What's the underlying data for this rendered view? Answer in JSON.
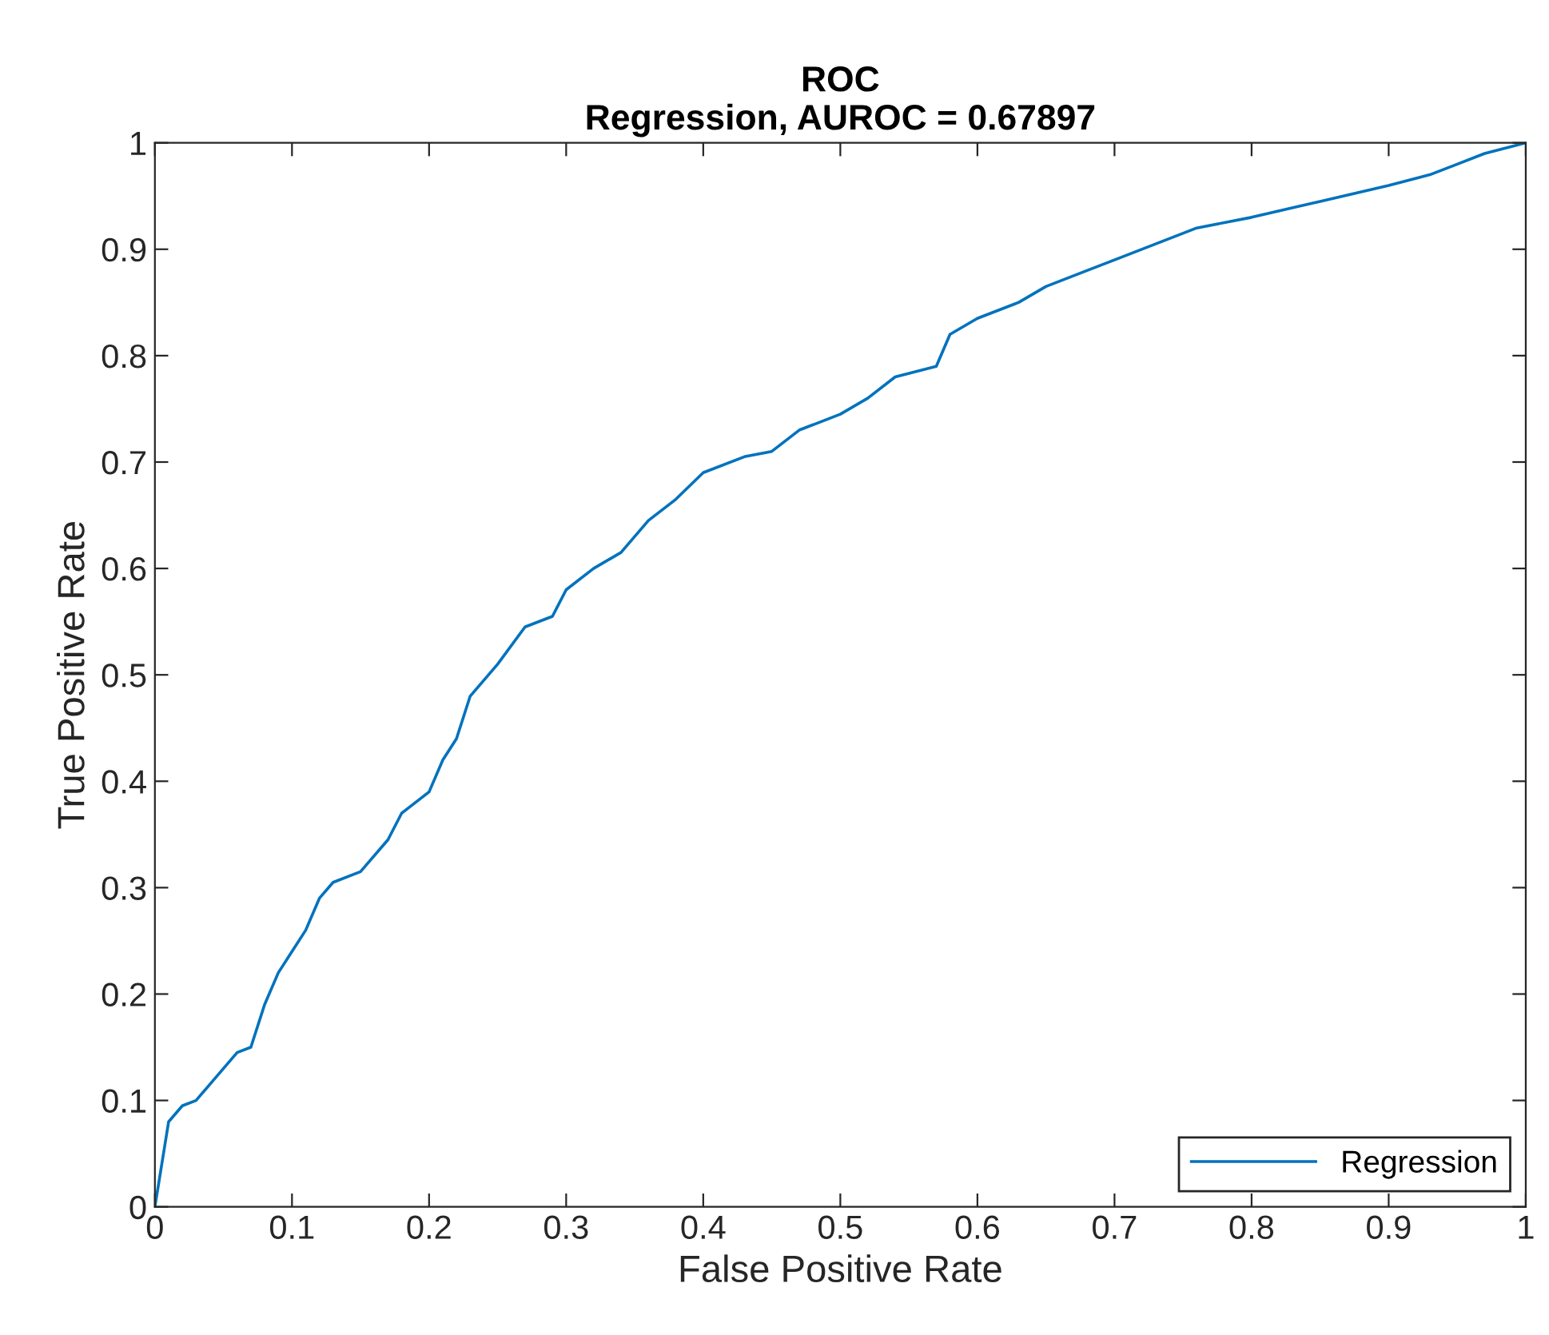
{
  "chart_data": {
    "type": "line",
    "title": "ROC",
    "subtitle": "Regression, AUROC = 0.67897",
    "xlabel": "False Positive Rate",
    "ylabel": "True Positive Rate",
    "series": [
      {
        "name": "Regression",
        "color": "#0072bd",
        "x": [
          0,
          0.005,
          0.01,
          0.02,
          0.03,
          0.04,
          0.05,
          0.06,
          0.07,
          0.08,
          0.09,
          0.1,
          0.11,
          0.12,
          0.13,
          0.15,
          0.17,
          0.18,
          0.2,
          0.21,
          0.22,
          0.23,
          0.25,
          0.27,
          0.29,
          0.3,
          0.32,
          0.34,
          0.36,
          0.38,
          0.4,
          0.43,
          0.45,
          0.47,
          0.5,
          0.52,
          0.54,
          0.57,
          0.58,
          0.6,
          0.63,
          0.65,
          0.68,
          0.7,
          0.73,
          0.76,
          0.8,
          0.85,
          0.9,
          0.93,
          0.95,
          0.97,
          1
        ],
        "values": [
          0,
          0.04,
          0.08,
          0.095,
          0.1,
          0.115,
          0.13,
          0.145,
          0.15,
          0.19,
          0.22,
          0.24,
          0.26,
          0.29,
          0.305,
          0.315,
          0.345,
          0.37,
          0.39,
          0.42,
          0.44,
          0.48,
          0.51,
          0.545,
          0.555,
          0.58,
          0.6,
          0.615,
          0.645,
          0.665,
          0.69,
          0.705,
          0.71,
          0.73,
          0.745,
          0.76,
          0.78,
          0.79,
          0.82,
          0.835,
          0.85,
          0.865,
          0.88,
          0.89,
          0.905,
          0.92,
          0.93,
          0.945,
          0.96,
          0.97,
          0.98,
          0.99,
          1
        ]
      }
    ],
    "xlim": [
      0,
      1
    ],
    "ylim": [
      0,
      1
    ],
    "xticks": [
      0,
      0.1,
      0.2,
      0.3,
      0.4,
      0.5,
      0.6,
      0.7,
      0.8,
      0.9,
      1
    ],
    "yticks": [
      0,
      0.1,
      0.2,
      0.3,
      0.4,
      0.5,
      0.6,
      0.7,
      0.8,
      0.9,
      1
    ],
    "legend": "bottom right",
    "line_style": "solid"
  }
}
